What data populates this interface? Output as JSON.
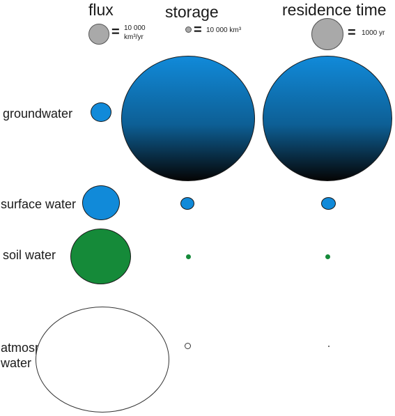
{
  "headers": {
    "flux": "flux",
    "storage": "storage",
    "residence": "residence time"
  },
  "legend": {
    "flux_value": "10 000",
    "flux_unit": "km³/yr",
    "storage_value": "10 000 km³",
    "residence_value": "1000 yr",
    "equals": "="
  },
  "rows": {
    "groundwater": "groundwater",
    "surface_water": "surface water",
    "soil_water": "soil water",
    "atmospheric_line1": "atmospheric",
    "atmospheric_line2": "water"
  },
  "colors": {
    "reference": "#a9a9a9",
    "groundwater": "#118ad9",
    "surface_water": "#118ad9",
    "soil_water": "#158a39",
    "atmospheric_water": "#ffffff"
  }
}
